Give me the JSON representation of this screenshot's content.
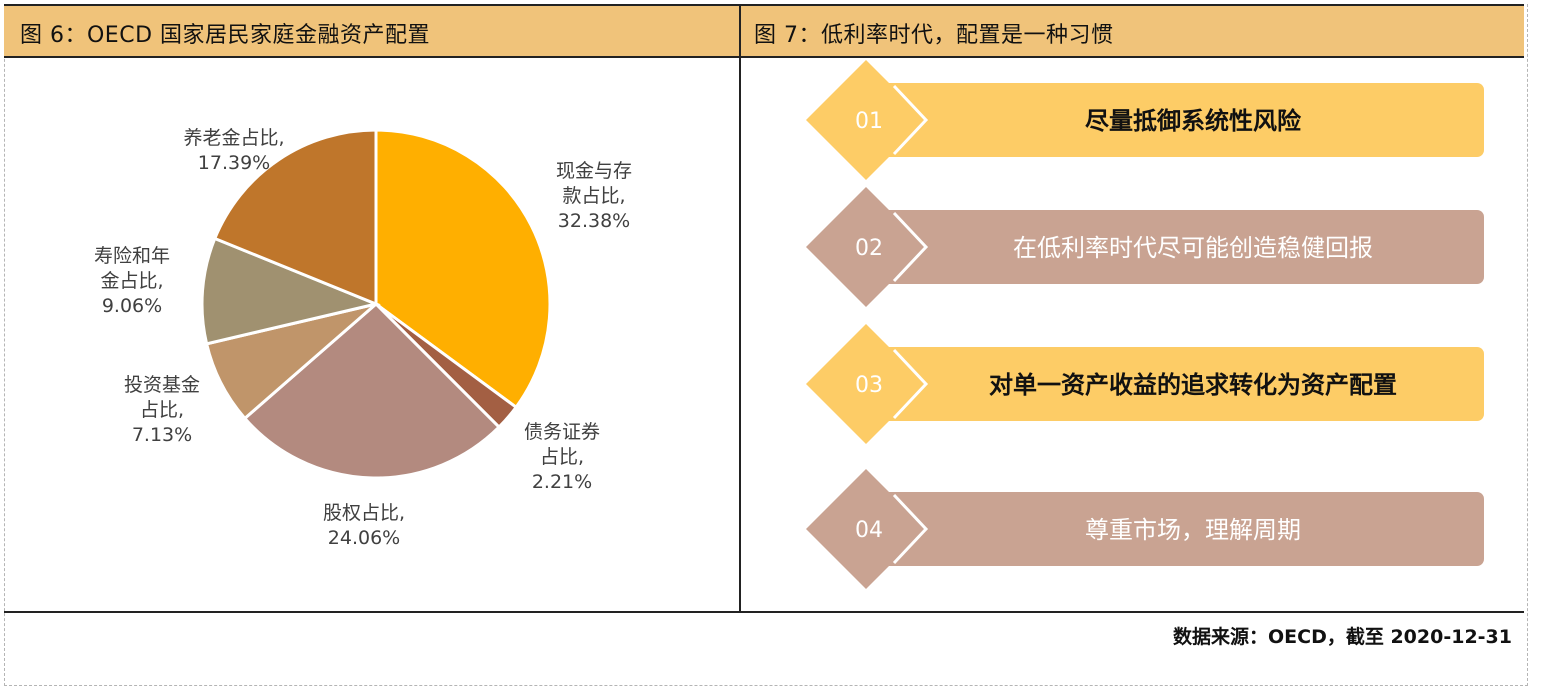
{
  "left_panel": {
    "title": "图 6：OECD 国家居民家庭金融资产配置"
  },
  "right_panel": {
    "title": "图 7：低利率时代，配置是一种习惯",
    "items": [
      {
        "num": "01",
        "text": "尽量抵御系统性风险",
        "color": "#fdcc66",
        "text_color": "#111111"
      },
      {
        "num": "02",
        "text": "在低利率时代尽可能创造稳健回报",
        "color": "#c9a392",
        "text_color": "#ffffff"
      },
      {
        "num": "03",
        "text": "对单一资产收益的追求转化为资产配置",
        "color": "#fdcc66",
        "text_color": "#111111"
      },
      {
        "num": "04",
        "text": "尊重市场，理解周期",
        "color": "#c9a392",
        "text_color": "#ffffff"
      }
    ]
  },
  "source": "数据来源：OECD，截至 2020-12-31",
  "chart_data": {
    "type": "pie",
    "title": "",
    "slices": [
      {
        "label_lines": [
          "现金与存",
          "款占比,",
          "32.38%"
        ],
        "value": 32.38,
        "color": "#ffaf00"
      },
      {
        "label_lines": [
          "债务证券",
          "占比,",
          "2.21%"
        ],
        "value": 2.21,
        "color": "#a35f43"
      },
      {
        "label_lines": [
          "股权占比,",
          "24.06%"
        ],
        "value": 24.06,
        "color": "#b38a7f"
      },
      {
        "label_lines": [
          "投资基金",
          "占比,",
          "7.13%"
        ],
        "value": 7.13,
        "color": "#c0956a"
      },
      {
        "label_lines": [
          "寿险和年",
          "金占比,",
          "9.06%"
        ],
        "value": 9.06,
        "color": "#a09170"
      },
      {
        "label_lines": [
          "养老金占比,",
          "17.39%"
        ],
        "value": 17.39,
        "color": "#bf762b"
      }
    ]
  }
}
